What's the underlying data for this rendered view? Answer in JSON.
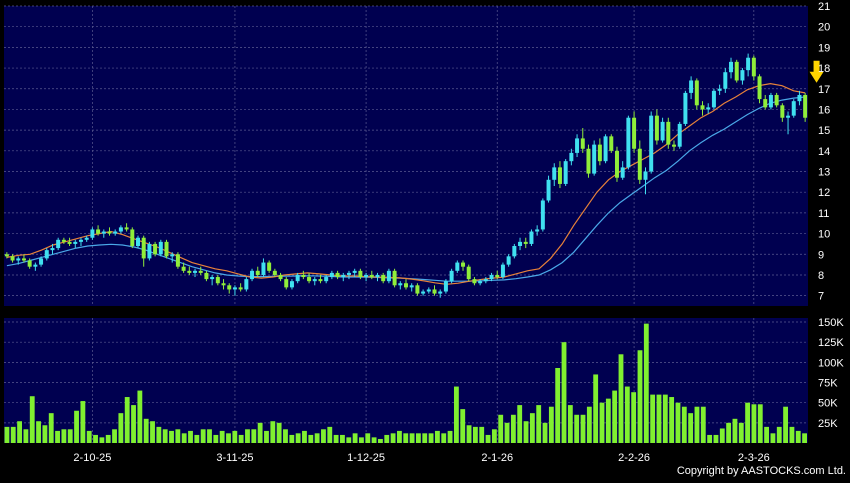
{
  "copyright": "Copyright by AASTOCKS.com Ltd.",
  "chart_data": [
    {
      "type": "candlestick",
      "ylim": [
        6.5,
        21
      ],
      "y_ticks": [
        7,
        8,
        9,
        10,
        11,
        12,
        13,
        14,
        15,
        16,
        17,
        18,
        19,
        20,
        21
      ],
      "grid": true,
      "colors": {
        "background": "#000050",
        "up": "#40e0f0",
        "down": "#90ee3a",
        "ma_short": "#e8823a",
        "ma_long": "#4aa8e8",
        "grid": "#5a5a90",
        "marker": "#ffd400"
      },
      "candles": [
        [
          9.0,
          9.1,
          8.8,
          8.9
        ],
        [
          8.9,
          9.0,
          8.6,
          8.7
        ],
        [
          8.7,
          8.9,
          8.5,
          8.8
        ],
        [
          8.8,
          9.0,
          8.6,
          8.7
        ],
        [
          8.7,
          8.8,
          8.3,
          8.4
        ],
        [
          8.4,
          8.6,
          8.2,
          8.5
        ],
        [
          8.5,
          8.9,
          8.4,
          8.8
        ],
        [
          8.8,
          9.3,
          8.7,
          9.2
        ],
        [
          9.2,
          9.5,
          9.0,
          9.3
        ],
        [
          9.3,
          9.8,
          9.2,
          9.7
        ],
        [
          9.7,
          9.8,
          9.5,
          9.6
        ],
        [
          9.6,
          9.8,
          9.4,
          9.5
        ],
        [
          9.5,
          9.7,
          9.3,
          9.6
        ],
        [
          9.6,
          9.8,
          9.4,
          9.7
        ],
        [
          9.7,
          9.9,
          9.6,
          9.8
        ],
        [
          9.8,
          10.3,
          9.7,
          10.2
        ],
        [
          10.2,
          10.4,
          9.9,
          10.0
        ],
        [
          10.0,
          10.2,
          9.8,
          10.1
        ],
        [
          10.1,
          10.3,
          9.9,
          10.0
        ],
        [
          10.0,
          10.2,
          9.9,
          10.1
        ],
        [
          10.1,
          10.4,
          10.0,
          10.3
        ],
        [
          10.3,
          10.5,
          10.1,
          10.2
        ],
        [
          10.2,
          10.3,
          9.3,
          9.4
        ],
        [
          9.4,
          9.9,
          9.3,
          9.8
        ],
        [
          9.8,
          9.9,
          8.4,
          8.8
        ],
        [
          8.8,
          9.6,
          8.7,
          9.5
        ],
        [
          9.5,
          9.6,
          8.9,
          9.0
        ],
        [
          9.0,
          9.7,
          8.9,
          9.6
        ],
        [
          9.6,
          9.7,
          8.8,
          8.9
        ],
        [
          8.9,
          9.1,
          8.6,
          9.0
        ],
        [
          9.0,
          9.1,
          8.3,
          8.4
        ],
        [
          8.4,
          8.6,
          8.1,
          8.2
        ],
        [
          8.2,
          8.4,
          8.0,
          8.1
        ],
        [
          8.1,
          8.3,
          7.9,
          8.2
        ],
        [
          8.2,
          8.4,
          8.0,
          8.1
        ],
        [
          8.1,
          8.2,
          7.7,
          7.8
        ],
        [
          7.8,
          8.0,
          7.5,
          7.9
        ],
        [
          7.9,
          8.0,
          7.5,
          7.6
        ],
        [
          7.6,
          7.8,
          7.3,
          7.5
        ],
        [
          7.5,
          7.6,
          7.1,
          7.3
        ],
        [
          7.3,
          7.5,
          7.0,
          7.4
        ],
        [
          7.4,
          7.6,
          7.2,
          7.3
        ],
        [
          7.3,
          7.9,
          7.2,
          7.8
        ],
        [
          7.8,
          8.3,
          7.7,
          8.2
        ],
        [
          8.2,
          8.4,
          7.9,
          8.0
        ],
        [
          8.0,
          8.8,
          7.9,
          8.6
        ],
        [
          8.6,
          8.7,
          8.1,
          8.2
        ],
        [
          8.2,
          8.3,
          7.9,
          8.0
        ],
        [
          8.0,
          8.1,
          7.7,
          7.8
        ],
        [
          7.8,
          7.9,
          7.3,
          7.4
        ],
        [
          7.4,
          7.8,
          7.3,
          7.7
        ],
        [
          7.7,
          8.1,
          7.6,
          8.0
        ],
        [
          8.0,
          8.2,
          7.8,
          7.9
        ],
        [
          7.9,
          8.1,
          7.6,
          7.7
        ],
        [
          7.7,
          7.9,
          7.5,
          7.8
        ],
        [
          7.8,
          8.0,
          7.6,
          7.7
        ],
        [
          7.7,
          8.0,
          7.6,
          7.9
        ],
        [
          7.9,
          8.2,
          7.8,
          8.1
        ],
        [
          8.1,
          8.2,
          7.8,
          7.9
        ],
        [
          7.9,
          8.1,
          7.7,
          8.0
        ],
        [
          8.0,
          8.2,
          7.8,
          8.1
        ],
        [
          8.1,
          8.3,
          7.9,
          8.2
        ],
        [
          8.2,
          8.3,
          7.8,
          7.9
        ],
        [
          7.9,
          8.1,
          7.7,
          8.0
        ],
        [
          8.0,
          8.2,
          7.8,
          7.9
        ],
        [
          7.9,
          8.1,
          7.7,
          8.0
        ],
        [
          8.0,
          8.1,
          7.6,
          7.7
        ],
        [
          7.7,
          8.3,
          7.6,
          8.2
        ],
        [
          8.2,
          8.3,
          7.4,
          7.5
        ],
        [
          7.5,
          7.7,
          7.3,
          7.6
        ],
        [
          7.6,
          7.8,
          7.3,
          7.4
        ],
        [
          7.4,
          7.6,
          7.2,
          7.5
        ],
        [
          7.5,
          7.6,
          7.0,
          7.1
        ],
        [
          7.1,
          7.3,
          7.0,
          7.2
        ],
        [
          7.2,
          7.4,
          7.1,
          7.3
        ],
        [
          7.3,
          7.5,
          7.0,
          7.1
        ],
        [
          7.1,
          7.3,
          6.9,
          7.2
        ],
        [
          7.2,
          7.8,
          7.1,
          7.7
        ],
        [
          7.7,
          8.3,
          7.6,
          8.2
        ],
        [
          8.2,
          8.7,
          8.1,
          8.6
        ],
        [
          8.6,
          8.7,
          8.2,
          8.4
        ],
        [
          8.4,
          8.5,
          7.7,
          7.8
        ],
        [
          7.8,
          7.9,
          7.5,
          7.6
        ],
        [
          7.6,
          7.8,
          7.5,
          7.7
        ],
        [
          7.7,
          7.9,
          7.6,
          7.8
        ],
        [
          7.8,
          8.1,
          7.7,
          8.0
        ],
        [
          8.0,
          8.2,
          7.8,
          7.9
        ],
        [
          7.9,
          8.6,
          7.8,
          8.5
        ],
        [
          8.5,
          9.0,
          8.4,
          8.9
        ],
        [
          8.9,
          9.5,
          8.8,
          9.4
        ],
        [
          9.4,
          9.8,
          9.2,
          9.6
        ],
        [
          9.6,
          9.8,
          9.3,
          9.5
        ],
        [
          9.5,
          10.2,
          9.4,
          10.1
        ],
        [
          10.1,
          10.4,
          9.9,
          10.2
        ],
        [
          10.2,
          11.7,
          10.1,
          11.6
        ],
        [
          11.6,
          12.8,
          11.5,
          12.6
        ],
        [
          12.6,
          13.4,
          12.3,
          13.2
        ],
        [
          13.2,
          13.5,
          12.2,
          12.4
        ],
        [
          12.4,
          13.6,
          12.3,
          13.5
        ],
        [
          13.5,
          14.1,
          13.3,
          13.9
        ],
        [
          13.9,
          14.8,
          13.7,
          14.6
        ],
        [
          14.6,
          15.1,
          13.9,
          14.1
        ],
        [
          14.1,
          14.3,
          12.7,
          12.9
        ],
        [
          12.9,
          14.5,
          12.8,
          14.3
        ],
        [
          14.3,
          14.6,
          13.3,
          13.5
        ],
        [
          13.5,
          14.8,
          13.4,
          14.7
        ],
        [
          14.7,
          14.8,
          13.9,
          14.0
        ],
        [
          14.0,
          14.2,
          12.5,
          12.7
        ],
        [
          12.7,
          13.5,
          12.6,
          13.2
        ],
        [
          13.2,
          15.7,
          13.1,
          15.6
        ],
        [
          15.6,
          15.9,
          13.9,
          14.1
        ],
        [
          14.1,
          14.5,
          12.4,
          12.6
        ],
        [
          12.6,
          13.2,
          11.9,
          13.0
        ],
        [
          13.0,
          15.9,
          12.9,
          15.7
        ],
        [
          15.7,
          16.0,
          14.3,
          14.5
        ],
        [
          14.5,
          15.6,
          14.4,
          15.4
        ],
        [
          15.4,
          15.6,
          14.1,
          14.3
        ],
        [
          14.3,
          14.5,
          14.0,
          14.2
        ],
        [
          14.2,
          15.4,
          14.1,
          15.3
        ],
        [
          15.3,
          16.9,
          15.2,
          16.8
        ],
        [
          16.8,
          17.6,
          16.5,
          17.4
        ],
        [
          17.4,
          17.5,
          16.0,
          16.2
        ],
        [
          16.2,
          16.4,
          15.7,
          16.0
        ],
        [
          16.0,
          16.3,
          15.8,
          16.1
        ],
        [
          16.1,
          17.0,
          16.0,
          16.9
        ],
        [
          16.9,
          17.2,
          16.7,
          17.0
        ],
        [
          17.0,
          18.0,
          16.8,
          17.8
        ],
        [
          17.8,
          18.5,
          17.5,
          18.3
        ],
        [
          18.3,
          18.4,
          17.3,
          17.4
        ],
        [
          17.4,
          18.0,
          17.2,
          17.9
        ],
        [
          17.9,
          18.7,
          17.6,
          18.5
        ],
        [
          18.5,
          18.6,
          17.4,
          17.6
        ],
        [
          17.6,
          17.7,
          16.3,
          16.5
        ],
        [
          16.5,
          16.7,
          16.0,
          16.1
        ],
        [
          16.1,
          16.8,
          16.0,
          16.7
        ],
        [
          16.7,
          16.8,
          16.1,
          16.2
        ],
        [
          16.2,
          16.3,
          15.4,
          15.6
        ],
        [
          15.6,
          15.9,
          14.8,
          15.7
        ],
        [
          15.7,
          16.5,
          15.6,
          16.4
        ],
        [
          16.4,
          16.9,
          16.2,
          16.7
        ],
        [
          16.7,
          16.8,
          15.4,
          15.6
        ]
      ],
      "ma_short": [
        8.85,
        8.95,
        9.0,
        9.2,
        9.45,
        9.6,
        9.75,
        9.9,
        10.0,
        10.1,
        9.95,
        9.75,
        9.55,
        9.35,
        9.1,
        8.85,
        8.6,
        8.45,
        8.3,
        8.2,
        8.05,
        7.9,
        7.85,
        7.9,
        8.0,
        8.05,
        8.1,
        8.05,
        8.0,
        7.95,
        7.95,
        7.92,
        7.9,
        7.88,
        7.86,
        7.8,
        7.72,
        7.62,
        7.55,
        7.6,
        7.7,
        7.78,
        7.85,
        7.9,
        8.05,
        8.2,
        8.3,
        8.8,
        9.5,
        10.4,
        11.2,
        12.0,
        12.6,
        13.0,
        13.3,
        13.6,
        13.9,
        14.3,
        14.8,
        15.2,
        15.6,
        15.9,
        16.3,
        16.6,
        16.95,
        17.15,
        17.25,
        17.15,
        16.9,
        16.8
      ],
      "ma_long": [
        8.45,
        8.55,
        8.7,
        8.85,
        9.0,
        9.15,
        9.3,
        9.4,
        9.45,
        9.48,
        9.45,
        9.35,
        9.2,
        9.0,
        8.8,
        8.6,
        8.4,
        8.25,
        8.1,
        8.0,
        7.95,
        7.92,
        7.92,
        7.93,
        7.94,
        7.95,
        7.96,
        7.95,
        7.93,
        7.9,
        7.9,
        7.89,
        7.88,
        7.86,
        7.85,
        7.82,
        7.78,
        7.74,
        7.7,
        7.7,
        7.7,
        7.72,
        7.74,
        7.76,
        7.82,
        7.9,
        8.0,
        8.25,
        8.6,
        9.1,
        9.75,
        10.4,
        11.0,
        11.5,
        11.9,
        12.3,
        12.7,
        13.05,
        13.5,
        14.0,
        14.4,
        14.75,
        15.05,
        15.4,
        15.75,
        16.05,
        16.3,
        16.45,
        16.55,
        16.6
      ],
      "marker": {
        "index": 142,
        "value": 17.1
      },
      "x_labels": [
        {
          "index": 15,
          "label": "2-10-25"
        },
        {
          "index": 40,
          "label": "3-11-25"
        },
        {
          "index": 63,
          "label": "1-12-25"
        },
        {
          "index": 86,
          "label": "2-1-26"
        },
        {
          "index": 110,
          "label": "2-2-26"
        },
        {
          "index": 131,
          "label": "2-3-26"
        }
      ]
    },
    {
      "type": "bar",
      "title": "",
      "ylim": [
        0,
        155000
      ],
      "y_ticks": [
        25000,
        50000,
        75000,
        100000,
        125000,
        150000
      ],
      "y_tick_labels": [
        "25K",
        "50K",
        "75K",
        "100K",
        "125K",
        "150K"
      ],
      "grid": true,
      "colors": {
        "bar": "#80f030"
      },
      "values": [
        20000,
        20000,
        27000,
        17000,
        58000,
        27000,
        22000,
        37000,
        15000,
        17000,
        17000,
        40000,
        52000,
        15000,
        10000,
        7000,
        10000,
        17000,
        37000,
        57000,
        47000,
        65000,
        30000,
        27000,
        20000,
        17000,
        15000,
        17000,
        12000,
        15000,
        10000,
        17000,
        17000,
        10000,
        15000,
        12000,
        15000,
        10000,
        17000,
        17000,
        25000,
        15000,
        27000,
        25000,
        17000,
        10000,
        12000,
        15000,
        10000,
        12000,
        17000,
        20000,
        10000,
        10000,
        7000,
        12000,
        7000,
        12000,
        7000,
        5000,
        10000,
        12000,
        15000,
        12000,
        12000,
        12000,
        12000,
        12000,
        15000,
        12000,
        15000,
        70000,
        42000,
        22000,
        20000,
        20000,
        10000,
        17000,
        35000,
        25000,
        35000,
        47000,
        27000,
        37000,
        47000,
        25000,
        45000,
        93000,
        125000,
        47000,
        35000,
        35000,
        45000,
        85000,
        50000,
        55000,
        65000,
        110000,
        70000,
        63000,
        115000,
        148000,
        60000,
        60000,
        60000,
        57000,
        50000,
        45000,
        37000,
        45000,
        45000,
        10000,
        10000,
        18000,
        25000,
        30000,
        25000,
        50000,
        48000,
        48000,
        20000,
        12000,
        20000,
        45000,
        20000,
        15000,
        12000
      ]
    }
  ]
}
